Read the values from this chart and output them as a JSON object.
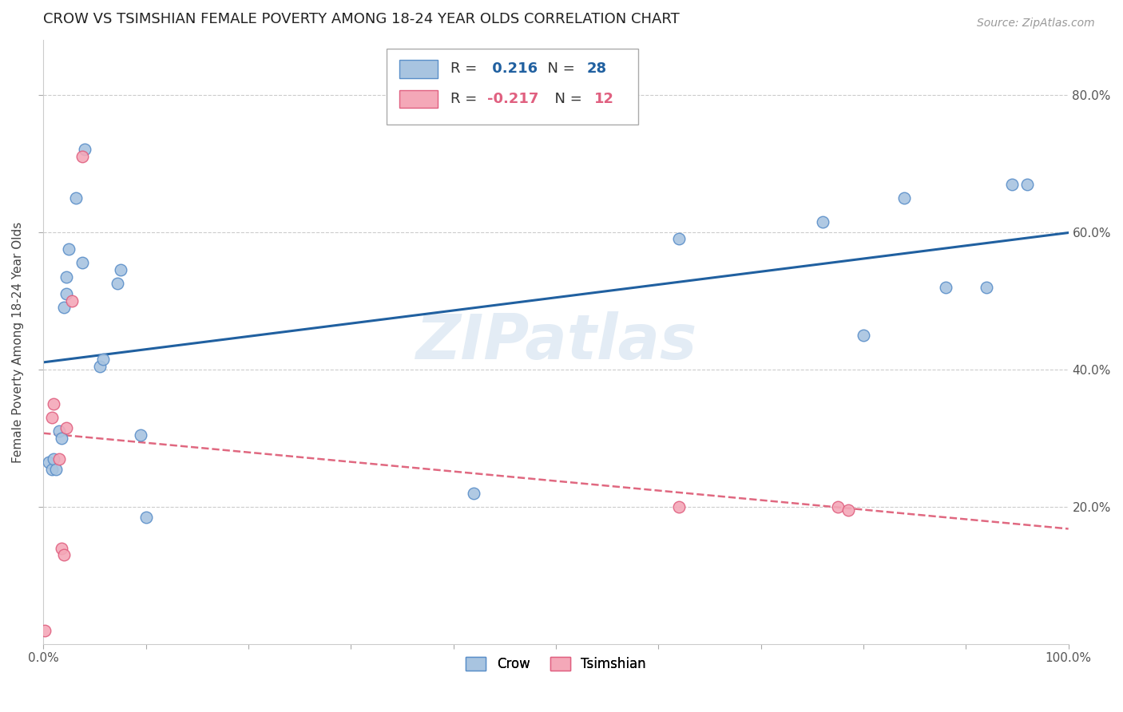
{
  "title": "CROW VS TSIMSHIAN FEMALE POVERTY AMONG 18-24 YEAR OLDS CORRELATION CHART",
  "source": "Source: ZipAtlas.com",
  "ylabel": "Female Poverty Among 18-24 Year Olds",
  "watermark": "ZIPatlas",
  "crow_x": [
    0.005,
    0.008,
    0.01,
    0.012,
    0.015,
    0.018,
    0.02,
    0.022,
    0.022,
    0.025,
    0.032,
    0.038,
    0.04,
    0.055,
    0.058,
    0.072,
    0.075,
    0.095,
    0.1,
    0.42,
    0.62,
    0.76,
    0.8,
    0.84,
    0.88,
    0.92,
    0.945,
    0.96
  ],
  "crow_y": [
    0.265,
    0.255,
    0.27,
    0.255,
    0.31,
    0.3,
    0.49,
    0.51,
    0.535,
    0.575,
    0.65,
    0.555,
    0.72,
    0.405,
    0.415,
    0.525,
    0.545,
    0.305,
    0.185,
    0.22,
    0.59,
    0.615,
    0.45,
    0.65,
    0.52,
    0.52,
    0.67,
    0.67
  ],
  "tsimshian_x": [
    0.001,
    0.008,
    0.01,
    0.015,
    0.018,
    0.02,
    0.022,
    0.028,
    0.038,
    0.62,
    0.775,
    0.785
  ],
  "tsimshian_y": [
    0.02,
    0.33,
    0.35,
    0.27,
    0.14,
    0.13,
    0.315,
    0.5,
    0.71,
    0.2,
    0.2,
    0.195
  ],
  "crow_color": "#a8c4e0",
  "crow_edge_color": "#5b8fc9",
  "tsimshian_color": "#f4a8b8",
  "tsimshian_edge_color": "#e06080",
  "crow_line_color": "#2060a0",
  "tsimshian_line_color": "#e06880",
  "crow_r": 0.216,
  "crow_n": 28,
  "tsimshian_r": -0.217,
  "tsimshian_n": 12,
  "xlim": [
    0.0,
    1.0
  ],
  "ylim": [
    0.0,
    0.88
  ],
  "right_yticks": [
    0.2,
    0.4,
    0.6,
    0.8
  ],
  "right_yticklabels": [
    "20.0%",
    "40.0%",
    "60.0%",
    "80.0%"
  ],
  "grid_color": "#cccccc",
  "background_color": "#ffffff",
  "title_fontsize": 13,
  "axis_fontsize": 11,
  "tick_fontsize": 11,
  "marker_size": 110
}
